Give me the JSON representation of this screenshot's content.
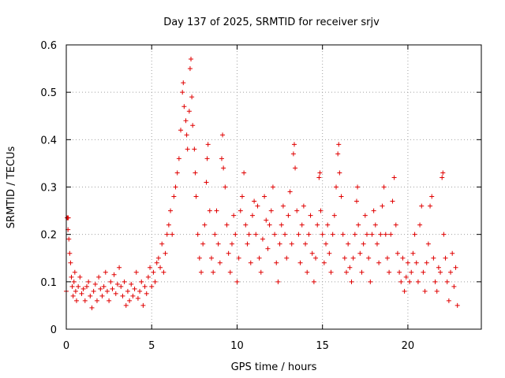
{
  "chart_data": {
    "type": "scatter",
    "title": "Day 137 of 2025, SRMTID for receiver srjv",
    "xlabel": "GPS time / hours",
    "ylabel": "SRMTID / TECUs",
    "xlim": [
      0,
      24.3
    ],
    "ylim": [
      0,
      0.6
    ],
    "xticks": [
      "0",
      "5",
      "10",
      "15",
      "20"
    ],
    "xtick_values": [
      0,
      5,
      10,
      15,
      20
    ],
    "yticks": [
      "0",
      "0.1",
      "0.2",
      "0.3",
      "0.4",
      "0.5",
      "0.6"
    ],
    "ytick_values": [
      0,
      0.1,
      0.2,
      0.3,
      0.4,
      0.5,
      0.6
    ],
    "grid": true,
    "marker": "+",
    "color": "#e00000",
    "series": [
      {
        "name": "SRMTID",
        "points": [
          [
            0.0,
            0.08
          ],
          [
            0.05,
            0.235
          ],
          [
            0.08,
            0.235
          ],
          [
            0.1,
            0.21
          ],
          [
            0.12,
            0.235
          ],
          [
            0.15,
            0.19
          ],
          [
            0.2,
            0.16
          ],
          [
            0.25,
            0.14
          ],
          [
            0.3,
            0.11
          ],
          [
            0.35,
            0.09
          ],
          [
            0.4,
            0.07
          ],
          [
            0.45,
            0.1
          ],
          [
            0.5,
            0.12
          ],
          [
            0.55,
            0.08
          ],
          [
            0.6,
            0.06
          ],
          [
            0.7,
            0.09
          ],
          [
            0.8,
            0.11
          ],
          [
            0.9,
            0.075
          ],
          [
            1.0,
            0.085
          ],
          [
            1.1,
            0.06
          ],
          [
            1.2,
            0.09
          ],
          [
            1.3,
            0.1
          ],
          [
            1.4,
            0.07
          ],
          [
            1.5,
            0.045
          ],
          [
            1.6,
            0.08
          ],
          [
            1.7,
            0.095
          ],
          [
            1.8,
            0.06
          ],
          [
            1.9,
            0.11
          ],
          [
            2.0,
            0.085
          ],
          [
            2.1,
            0.07
          ],
          [
            2.2,
            0.09
          ],
          [
            2.3,
            0.12
          ],
          [
            2.4,
            0.08
          ],
          [
            2.5,
            0.06
          ],
          [
            2.6,
            0.1
          ],
          [
            2.7,
            0.085
          ],
          [
            2.8,
            0.115
          ],
          [
            2.9,
            0.075
          ],
          [
            3.0,
            0.095
          ],
          [
            3.1,
            0.13
          ],
          [
            3.2,
            0.09
          ],
          [
            3.3,
            0.07
          ],
          [
            3.4,
            0.1
          ],
          [
            3.5,
            0.05
          ],
          [
            3.6,
            0.08
          ],
          [
            3.7,
            0.06
          ],
          [
            3.8,
            0.095
          ],
          [
            3.9,
            0.07
          ],
          [
            4.0,
            0.085
          ],
          [
            4.1,
            0.12
          ],
          [
            4.2,
            0.065
          ],
          [
            4.3,
            0.08
          ],
          [
            4.4,
            0.1
          ],
          [
            4.5,
            0.05
          ],
          [
            4.6,
            0.09
          ],
          [
            4.7,
            0.075
          ],
          [
            4.8,
            0.11
          ],
          [
            4.9,
            0.13
          ],
          [
            5.0,
            0.09
          ],
          [
            5.1,
            0.12
          ],
          [
            5.2,
            0.1
          ],
          [
            5.3,
            0.14
          ],
          [
            5.4,
            0.15
          ],
          [
            5.5,
            0.13
          ],
          [
            5.6,
            0.18
          ],
          [
            5.7,
            0.12
          ],
          [
            5.8,
            0.16
          ],
          [
            5.9,
            0.2
          ],
          [
            6.0,
            0.22
          ],
          [
            6.1,
            0.25
          ],
          [
            6.2,
            0.2
          ],
          [
            6.3,
            0.28
          ],
          [
            6.4,
            0.3
          ],
          [
            6.5,
            0.33
          ],
          [
            6.6,
            0.36
          ],
          [
            6.7,
            0.42
          ],
          [
            6.8,
            0.5
          ],
          [
            6.85,
            0.52
          ],
          [
            6.9,
            0.47
          ],
          [
            7.0,
            0.44
          ],
          [
            7.05,
            0.41
          ],
          [
            7.1,
            0.38
          ],
          [
            7.2,
            0.46
          ],
          [
            7.25,
            0.55
          ],
          [
            7.3,
            0.57
          ],
          [
            7.35,
            0.49
          ],
          [
            7.4,
            0.43
          ],
          [
            7.5,
            0.38
          ],
          [
            7.55,
            0.33
          ],
          [
            7.6,
            0.28
          ],
          [
            7.7,
            0.2
          ],
          [
            7.8,
            0.15
          ],
          [
            7.9,
            0.12
          ],
          [
            8.0,
            0.18
          ],
          [
            8.1,
            0.22
          ],
          [
            8.2,
            0.31
          ],
          [
            8.25,
            0.36
          ],
          [
            8.3,
            0.39
          ],
          [
            8.4,
            0.25
          ],
          [
            8.5,
            0.15
          ],
          [
            8.6,
            0.12
          ],
          [
            8.7,
            0.2
          ],
          [
            8.8,
            0.25
          ],
          [
            8.9,
            0.18
          ],
          [
            9.0,
            0.14
          ],
          [
            9.1,
            0.36
          ],
          [
            9.15,
            0.41
          ],
          [
            9.2,
            0.34
          ],
          [
            9.3,
            0.3
          ],
          [
            9.4,
            0.22
          ],
          [
            9.5,
            0.16
          ],
          [
            9.6,
            0.12
          ],
          [
            9.7,
            0.18
          ],
          [
            9.8,
            0.24
          ],
          [
            9.9,
            0.2
          ],
          [
            10.0,
            0.1
          ],
          [
            10.1,
            0.15
          ],
          [
            10.2,
            0.25
          ],
          [
            10.3,
            0.28
          ],
          [
            10.4,
            0.33
          ],
          [
            10.5,
            0.22
          ],
          [
            10.6,
            0.18
          ],
          [
            10.7,
            0.2
          ],
          [
            10.8,
            0.14
          ],
          [
            10.9,
            0.24
          ],
          [
            11.0,
            0.27
          ],
          [
            11.1,
            0.2
          ],
          [
            11.2,
            0.26
          ],
          [
            11.3,
            0.15
          ],
          [
            11.4,
            0.12
          ],
          [
            11.5,
            0.19
          ],
          [
            11.6,
            0.28
          ],
          [
            11.7,
            0.23
          ],
          [
            11.8,
            0.17
          ],
          [
            11.9,
            0.22
          ],
          [
            12.0,
            0.25
          ],
          [
            12.1,
            0.3
          ],
          [
            12.2,
            0.2
          ],
          [
            12.3,
            0.14
          ],
          [
            12.4,
            0.1
          ],
          [
            12.5,
            0.18
          ],
          [
            12.6,
            0.22
          ],
          [
            12.7,
            0.26
          ],
          [
            12.8,
            0.2
          ],
          [
            12.9,
            0.15
          ],
          [
            13.0,
            0.24
          ],
          [
            13.1,
            0.29
          ],
          [
            13.2,
            0.18
          ],
          [
            13.3,
            0.37
          ],
          [
            13.35,
            0.39
          ],
          [
            13.4,
            0.34
          ],
          [
            13.5,
            0.25
          ],
          [
            13.6,
            0.2
          ],
          [
            13.7,
            0.14
          ],
          [
            13.8,
            0.22
          ],
          [
            13.9,
            0.26
          ],
          [
            14.0,
            0.18
          ],
          [
            14.1,
            0.12
          ],
          [
            14.2,
            0.2
          ],
          [
            14.3,
            0.24
          ],
          [
            14.4,
            0.16
          ],
          [
            14.5,
            0.1
          ],
          [
            14.6,
            0.15
          ],
          [
            14.7,
            0.22
          ],
          [
            14.8,
            0.32
          ],
          [
            14.85,
            0.33
          ],
          [
            14.9,
            0.25
          ],
          [
            15.0,
            0.2
          ],
          [
            15.1,
            0.14
          ],
          [
            15.2,
            0.18
          ],
          [
            15.3,
            0.22
          ],
          [
            15.4,
            0.16
          ],
          [
            15.5,
            0.12
          ],
          [
            15.6,
            0.2
          ],
          [
            15.7,
            0.24
          ],
          [
            15.8,
            0.3
          ],
          [
            15.9,
            0.37
          ],
          [
            15.95,
            0.39
          ],
          [
            16.0,
            0.33
          ],
          [
            16.1,
            0.28
          ],
          [
            16.2,
            0.2
          ],
          [
            16.3,
            0.15
          ],
          [
            16.4,
            0.12
          ],
          [
            16.5,
            0.18
          ],
          [
            16.6,
            0.13
          ],
          [
            16.7,
            0.1
          ],
          [
            16.8,
            0.15
          ],
          [
            16.9,
            0.2
          ],
          [
            17.0,
            0.27
          ],
          [
            17.05,
            0.3
          ],
          [
            17.1,
            0.22
          ],
          [
            17.2,
            0.16
          ],
          [
            17.3,
            0.12
          ],
          [
            17.4,
            0.18
          ],
          [
            17.5,
            0.24
          ],
          [
            17.6,
            0.2
          ],
          [
            17.7,
            0.15
          ],
          [
            17.8,
            0.1
          ],
          [
            17.9,
            0.2
          ],
          [
            18.0,
            0.25
          ],
          [
            18.1,
            0.22
          ],
          [
            18.2,
            0.18
          ],
          [
            18.3,
            0.14
          ],
          [
            18.4,
            0.2
          ],
          [
            18.5,
            0.26
          ],
          [
            18.6,
            0.3
          ],
          [
            18.7,
            0.2
          ],
          [
            18.8,
            0.15
          ],
          [
            18.9,
            0.12
          ],
          [
            19.0,
            0.2
          ],
          [
            19.1,
            0.27
          ],
          [
            19.2,
            0.32
          ],
          [
            19.3,
            0.22
          ],
          [
            19.4,
            0.16
          ],
          [
            19.5,
            0.12
          ],
          [
            19.6,
            0.1
          ],
          [
            19.7,
            0.15
          ],
          [
            19.8,
            0.08
          ],
          [
            19.9,
            0.11
          ],
          [
            20.0,
            0.14
          ],
          [
            20.1,
            0.1
          ],
          [
            20.2,
            0.12
          ],
          [
            20.3,
            0.16
          ],
          [
            20.4,
            0.2
          ],
          [
            20.5,
            0.14
          ],
          [
            20.6,
            0.1
          ],
          [
            20.7,
            0.22
          ],
          [
            20.8,
            0.26
          ],
          [
            20.9,
            0.12
          ],
          [
            21.0,
            0.08
          ],
          [
            21.1,
            0.14
          ],
          [
            21.2,
            0.18
          ],
          [
            21.3,
            0.26
          ],
          [
            21.4,
            0.28
          ],
          [
            21.5,
            0.15
          ],
          [
            21.6,
            0.1
          ],
          [
            21.7,
            0.08
          ],
          [
            21.8,
            0.13
          ],
          [
            21.9,
            0.12
          ],
          [
            22.0,
            0.32
          ],
          [
            22.05,
            0.33
          ],
          [
            22.1,
            0.2
          ],
          [
            22.2,
            0.15
          ],
          [
            22.3,
            0.1
          ],
          [
            22.4,
            0.06
          ],
          [
            22.5,
            0.12
          ],
          [
            22.6,
            0.16
          ],
          [
            22.7,
            0.09
          ],
          [
            22.8,
            0.13
          ],
          [
            22.9,
            0.05
          ]
        ]
      }
    ]
  }
}
